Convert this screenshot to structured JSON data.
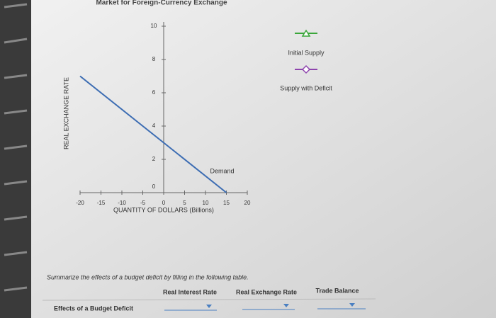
{
  "chart_data": {
    "type": "line",
    "title": "Market for Foreign-Currency Exchange",
    "xlabel": "QUANTITY OF DOLLARS (Billions)",
    "ylabel": "REAL EXCHANGE RATE",
    "xlim": [
      -20,
      20
    ],
    "ylim": [
      0,
      10
    ],
    "xticks": [
      -20,
      -15,
      -10,
      -5,
      0,
      5,
      10,
      15,
      20
    ],
    "yticks": [
      0,
      2,
      4,
      6,
      8,
      10
    ],
    "series": [
      {
        "name": "Demand",
        "color": "#3d6db3",
        "x": [
          -20,
          15
        ],
        "values": [
          7,
          0
        ]
      }
    ],
    "tools": [
      {
        "name": "Initial Supply",
        "color": "#3aa63a",
        "marker": "triangle"
      },
      {
        "name": "Supply with Deficit",
        "color": "#8e44ad",
        "marker": "diamond"
      }
    ]
  },
  "table": {
    "prompt": "Summarize the effects of a budget deficit by filling in the following table.",
    "columns": [
      "Real Interest Rate",
      "Real Exchange Rate",
      "Trade Balance"
    ],
    "rows": [
      {
        "label": "Effects of a Budget Deficit"
      }
    ]
  }
}
